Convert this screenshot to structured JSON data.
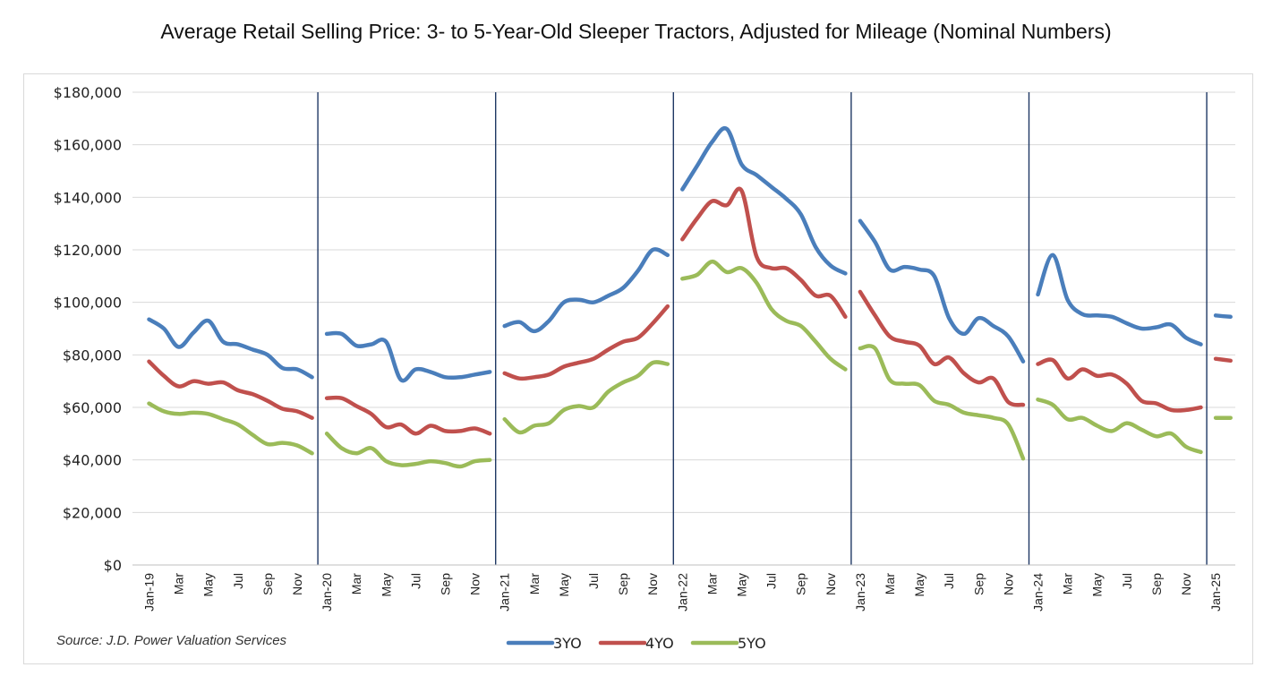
{
  "chart_data": {
    "type": "line",
    "title": "Average Retail Selling Price: 3- to 5-Year-Old Sleeper Tractors, Adjusted for Mileage (Nominal Numbers)",
    "source": "Source: J.D. Power Valuation Services",
    "xlabel": "",
    "ylabel": "",
    "ylim": [
      0,
      180000
    ],
    "y_ticks": [
      "$0",
      "$20,000",
      "$40,000",
      "$60,000",
      "$80,000",
      "$100,000",
      "$120,000",
      "$140,000",
      "$160,000",
      "$180,000"
    ],
    "y_tick_values": [
      0,
      20000,
      40000,
      60000,
      80000,
      100000,
      120000,
      140000,
      160000,
      180000
    ],
    "grid": true,
    "legend": "bottom",
    "year_separators": true,
    "categories": [
      "Jan-19",
      "Feb-19",
      "Mar-19",
      "Apr-19",
      "May-19",
      "Jun-19",
      "Jul-19",
      "Aug-19",
      "Sep-19",
      "Oct-19",
      "Nov-19",
      "Dec-19",
      "Jan-20",
      "Feb-20",
      "Mar-20",
      "Apr-20",
      "May-20",
      "Jun-20",
      "Jul-20",
      "Aug-20",
      "Sep-20",
      "Oct-20",
      "Nov-20",
      "Dec-20",
      "Jan-21",
      "Feb-21",
      "Mar-21",
      "Apr-21",
      "May-21",
      "Jun-21",
      "Jul-21",
      "Aug-21",
      "Sep-21",
      "Oct-21",
      "Nov-21",
      "Dec-21",
      "Jan-22",
      "Feb-22",
      "Mar-22",
      "Apr-22",
      "May-22",
      "Jun-22",
      "Jul-22",
      "Aug-22",
      "Sep-22",
      "Oct-22",
      "Nov-22",
      "Dec-22",
      "Jan-23",
      "Feb-23",
      "Mar-23",
      "Apr-23",
      "May-23",
      "Jun-23",
      "Jul-23",
      "Aug-23",
      "Sep-23",
      "Oct-23",
      "Nov-23",
      "Dec-23",
      "Jan-24",
      "Feb-24",
      "Mar-24",
      "Apr-24",
      "May-24",
      "Jun-24",
      "Jul-24",
      "Aug-24",
      "Sep-24",
      "Oct-24",
      "Nov-24",
      "Dec-24",
      "Jan-25",
      "Feb-25"
    ],
    "x_tick_labels": [
      {
        "index": 0,
        "label": "Jan-19"
      },
      {
        "index": 2,
        "label": "Mar"
      },
      {
        "index": 4,
        "label": "May"
      },
      {
        "index": 6,
        "label": "Jul"
      },
      {
        "index": 8,
        "label": "Sep"
      },
      {
        "index": 10,
        "label": "Nov"
      },
      {
        "index": 12,
        "label": "Jan-20"
      },
      {
        "index": 14,
        "label": "Mar"
      },
      {
        "index": 16,
        "label": "May"
      },
      {
        "index": 18,
        "label": "Jul"
      },
      {
        "index": 20,
        "label": "Sep"
      },
      {
        "index": 22,
        "label": "Nov"
      },
      {
        "index": 24,
        "label": "Jan-21"
      },
      {
        "index": 26,
        "label": "Mar"
      },
      {
        "index": 28,
        "label": "May"
      },
      {
        "index": 30,
        "label": "Jul"
      },
      {
        "index": 32,
        "label": "Sep"
      },
      {
        "index": 34,
        "label": "Nov"
      },
      {
        "index": 36,
        "label": "Jan-22"
      },
      {
        "index": 38,
        "label": "Mar"
      },
      {
        "index": 40,
        "label": "May"
      },
      {
        "index": 42,
        "label": "Jul"
      },
      {
        "index": 44,
        "label": "Sep"
      },
      {
        "index": 46,
        "label": "Nov"
      },
      {
        "index": 48,
        "label": "Jan-23"
      },
      {
        "index": 50,
        "label": "Mar"
      },
      {
        "index": 52,
        "label": "May"
      },
      {
        "index": 54,
        "label": "Jul"
      },
      {
        "index": 56,
        "label": "Sep"
      },
      {
        "index": 58,
        "label": "Nov"
      },
      {
        "index": 60,
        "label": "Jan-24"
      },
      {
        "index": 62,
        "label": "Mar"
      },
      {
        "index": 64,
        "label": "May"
      },
      {
        "index": 66,
        "label": "Jul"
      },
      {
        "index": 68,
        "label": "Sep"
      },
      {
        "index": 70,
        "label": "Nov"
      },
      {
        "index": 72,
        "label": "Jan-25"
      }
    ],
    "series": [
      {
        "name": "3YO",
        "color": "#4a7ebb",
        "values": [
          [
            93500,
            90000,
            83000,
            88500,
            93000,
            85000,
            84000,
            82000,
            80000,
            75000,
            74500,
            71500
          ],
          [
            88000,
            88000,
            83500,
            84000,
            85000,
            70500,
            74500,
            73500,
            71500,
            71500,
            72500,
            73500
          ],
          [
            91000,
            92500,
            89000,
            93000,
            100000,
            101000,
            100000,
            102500,
            105500,
            112000,
            120000,
            118000
          ],
          [
            143000,
            152000,
            161000,
            166000,
            152500,
            148500,
            144000,
            139500,
            133500,
            121000,
            114000,
            111000
          ],
          [
            131000,
            123000,
            112500,
            113500,
            112500,
            110000,
            94000,
            88000,
            94000,
            91000,
            87000,
            77500
          ],
          [
            103000,
            118000,
            101000,
            95500,
            95000,
            94500,
            92000,
            90000,
            90500,
            91500,
            86500,
            84000
          ],
          [
            95000,
            94500
          ]
        ]
      },
      {
        "name": "4YO",
        "color": "#c0504d",
        "values": [
          [
            77500,
            72000,
            68000,
            70000,
            69000,
            69500,
            66500,
            65000,
            62500,
            59500,
            58500,
            56000
          ],
          [
            63500,
            63500,
            60500,
            57500,
            52500,
            53500,
            50000,
            53000,
            51000,
            51000,
            52000,
            50000
          ],
          [
            73000,
            71000,
            71500,
            72500,
            75500,
            77000,
            78500,
            82000,
            85000,
            86500,
            92000,
            98500
          ],
          [
            124000,
            132000,
            138500,
            137000,
            142500,
            117500,
            113000,
            113000,
            108500,
            102500,
            102500,
            94500
          ],
          [
            104000,
            95000,
            87000,
            85000,
            83500,
            76500,
            79000,
            73000,
            69500,
            71000,
            62000,
            61000
          ],
          [
            76500,
            78000,
            71000,
            74500,
            72000,
            72500,
            69000,
            62500,
            61500,
            59000,
            59000,
            60000
          ],
          [
            78500,
            77800
          ]
        ]
      },
      {
        "name": "5YO",
        "color": "#9bbb59",
        "values": [
          [
            61500,
            58500,
            57500,
            58000,
            57500,
            55500,
            53500,
            49500,
            46000,
            46500,
            45500,
            42500
          ],
          [
            50000,
            44500,
            42500,
            44500,
            39500,
            38000,
            38500,
            39500,
            38800,
            37500,
            39500,
            40000
          ],
          [
            55500,
            50500,
            53000,
            54000,
            59000,
            60500,
            60000,
            66000,
            69500,
            72000,
            77000,
            76500
          ],
          [
            109000,
            110500,
            115500,
            111500,
            113000,
            107500,
            97500,
            93000,
            91000,
            85000,
            78500,
            74500
          ],
          [
            82500,
            82500,
            70500,
            69000,
            68500,
            62500,
            61000,
            58000,
            57000,
            56000,
            53500,
            40500
          ],
          [
            63000,
            61000,
            55500,
            56000,
            53000,
            51000,
            54000,
            51500,
            49000,
            50000,
            45000,
            43000
          ],
          [
            56000,
            56000
          ]
        ]
      }
    ]
  }
}
